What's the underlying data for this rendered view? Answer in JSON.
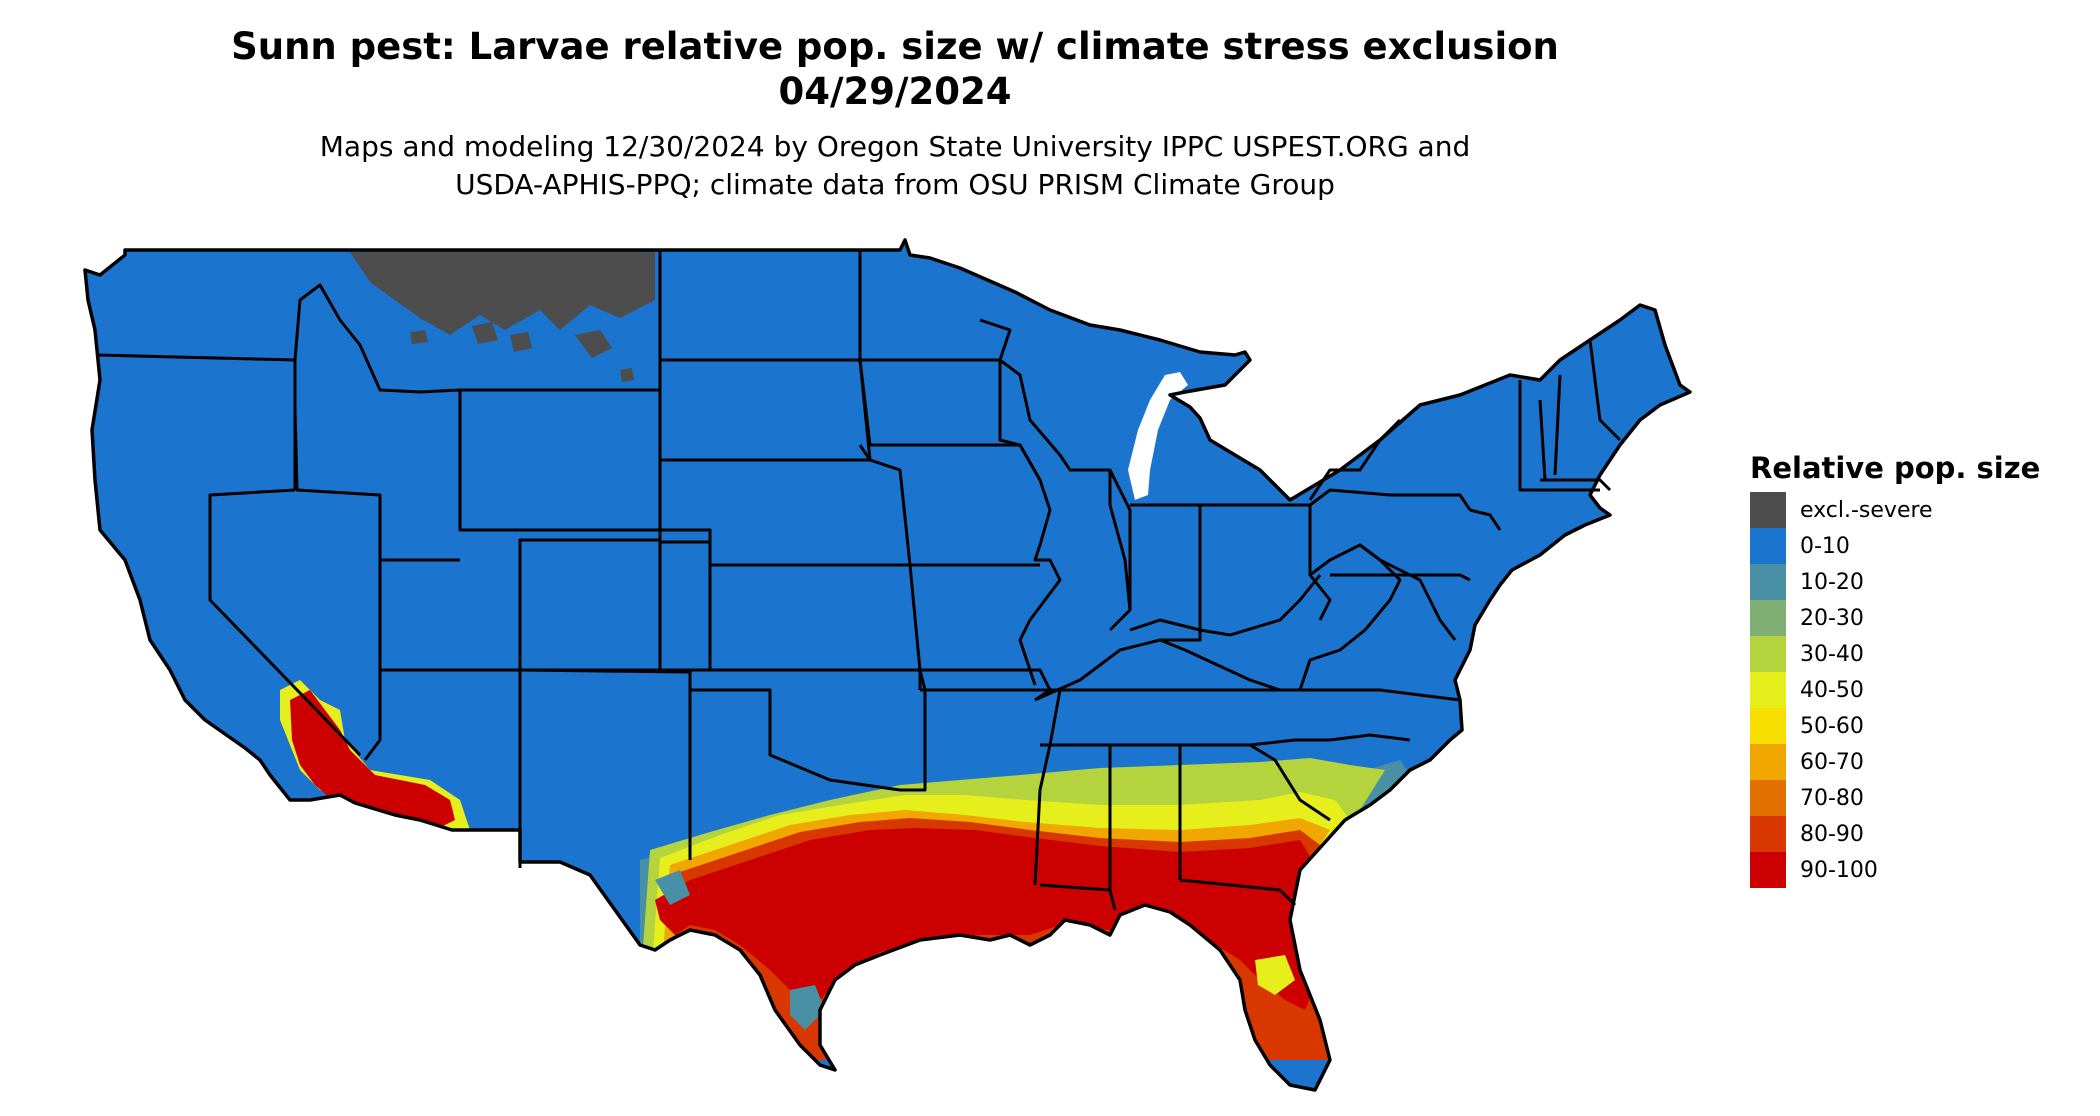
{
  "title": {
    "line1": "Sunn pest: Larvae relative pop. size w/ climate stress exclusion",
    "line2": "04/29/2024"
  },
  "subtitle": {
    "line1": "Maps and modeling 12/30/2024 by Oregon State University IPPC USPEST.ORG and",
    "line2": "USDA-APHIS-PPQ; climate data from OSU PRISM Climate Group"
  },
  "legend": {
    "title": "Relative pop. size",
    "items": [
      {
        "label": "excl.-severe",
        "color": "#4d4d4d"
      },
      {
        "label": "0-10",
        "color": "#1b74cd"
      },
      {
        "label": "10-20",
        "color": "#4a90a4"
      },
      {
        "label": "20-30",
        "color": "#7faf72"
      },
      {
        "label": "30-40",
        "color": "#b5d33d"
      },
      {
        "label": "40-50",
        "color": "#e6ee1c"
      },
      {
        "label": "50-60",
        "color": "#f7df00"
      },
      {
        "label": "60-70",
        "color": "#f0a800"
      },
      {
        "label": "70-80",
        "color": "#e27000"
      },
      {
        "label": "80-90",
        "color": "#d83800"
      },
      {
        "label": "90-100",
        "color": "#cc0000"
      }
    ]
  },
  "map": {
    "region": "Contiguous United States",
    "base_color": "#1b74cd",
    "excluded_color": "#4d4d4d",
    "border_color": "#000000"
  }
}
